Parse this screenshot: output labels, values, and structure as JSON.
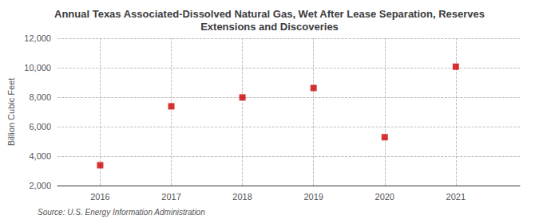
{
  "chart_data": {
    "type": "scatter",
    "title": "Annual Texas Associated-Dissolved Natural Gas, Wet After Lease Separation, Reserves\nExtensions and Discoveries",
    "ylabel": "Billion Cubic Feet",
    "x": [
      2016,
      2017,
      2018,
      2019,
      2020,
      2021
    ],
    "values": [
      3380,
      7380,
      7980,
      8620,
      5280,
      10070
    ],
    "color": "#cc0000",
    "marker": "square",
    "xlim": [
      2015.4,
      2021.9
    ],
    "xticks": [
      2016,
      2017,
      2018,
      2019,
      2020,
      2021
    ],
    "ylim": [
      2000,
      12000
    ],
    "yticks": [
      {
        "value": 2000,
        "label": "2,000"
      },
      {
        "value": 4000,
        "label": "4,000"
      },
      {
        "value": 6000,
        "label": "6,000"
      },
      {
        "value": 8000,
        "label": "8,000"
      },
      {
        "value": 10000,
        "label": "10,000"
      },
      {
        "value": 12000,
        "label": "12,000"
      }
    ],
    "grid": true,
    "annotations": [
      "Source: U.S. Energy Information Administration"
    ]
  }
}
